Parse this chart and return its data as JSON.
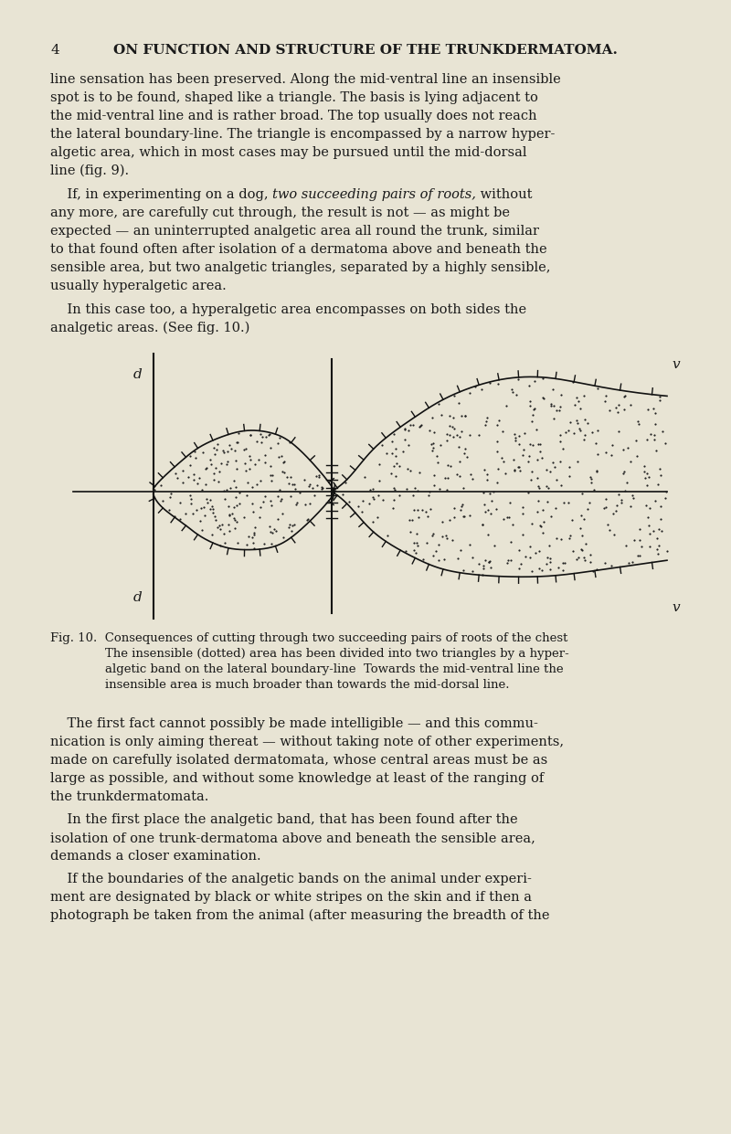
{
  "bg_color": "#e8e4d4",
  "page_number": "4",
  "header": "ON FUNCTION AND STRUCTURE OF THE TRUNKDERMATOMA.",
  "paragraphs": [
    "line sensation has been preserved. Along the mid-ventral line an insensible spot is to be found, shaped like a triangle. The basis is lying adjacent to the mid-ventral line and is rather broad. The top usually does not reach the lateral boundary-line. The triangle is encompassed by a narrow hyper-algetic area, which in most cases may be pursued until the mid-dorsal line (fig. 9).",
    "If, in experimenting on a dog, {two succeeding pairs of roots,} without any more, are carefully cut through, the result is not — as might be expected — an uninterrupted analgetic area all round the trunk, similar to that found often after isolation of a dermatoma above and beneath the sensible area, but two analgetic triangles, separated by a highly sensible, usually hyperalgetic area.",
    "In this case too, a hyperalgetic area encompasses on both sides the analgetic areas. (See fig. 10.)"
  ],
  "caption_lines": [
    "Fig. 10.  Consequences of cutting through two succeeding pairs of roots of the chest",
    "The insensible (dotted) area has been divided into two triangles by a hyper-",
    "algetic band on the lateral boundary-line  Towards the mid-ventral line the",
    "insensible area is much broader than towards the mid-dorsal line."
  ],
  "paragraphs2": [
    "The first fact cannot possibly be made intelligible — and this communication is only aiming thereat — without taking note of other experiments, made on carefully isolated dermatomata, whose central areas must be as large as possible, and without some knowledge at least of the ranging of the trunkdermatomata.",
    "In the first place the analgetic band, that has been found after the isolation of one trunk­dermatoma above and beneath the sensible area, demands a closer examination.",
    "If the boundaries of the analgetic bands on the animal under experiment are designated by black or white stripes on the skin and if then a photograph be taken from the animal (after measuring the breadth of the"
  ],
  "text_color": "#1a1a1a",
  "line_color": "#111111"
}
